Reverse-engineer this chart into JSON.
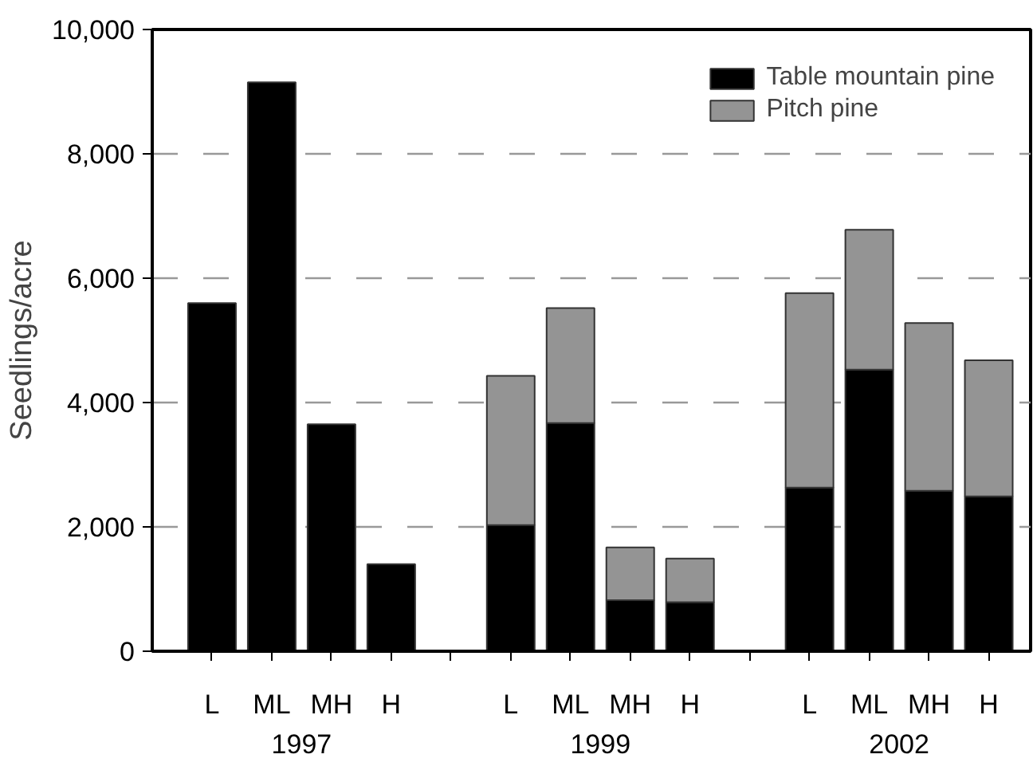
{
  "chart_data": {
    "type": "bar",
    "stacked": true,
    "ylabel": "Seedlings/acre",
    "categories": [
      "L",
      "ML",
      "MH",
      "H",
      null,
      "L",
      "ML",
      "MH",
      "H",
      null,
      "L",
      "ML",
      "MH",
      "H"
    ],
    "series": [
      {
        "name": "Table mountain pine",
        "color": "#000000",
        "values": [
          5600,
          9150,
          3650,
          1400,
          null,
          2030,
          3670,
          820,
          790,
          null,
          2630,
          4530,
          2580,
          2490
        ]
      },
      {
        "name": "Pitch pine",
        "color": "#949494",
        "values": [
          null,
          null,
          null,
          null,
          null,
          2400,
          1850,
          850,
          700,
          null,
          3130,
          2250,
          2700,
          2190
        ]
      }
    ],
    "annotations": [
      "1997",
      "1999",
      "2002"
    ],
    "ylim": [
      0,
      10000
    ],
    "yticks": [
      0,
      {
        "value": 2000,
        "label": "2,000"
      },
      {
        "value": 4000,
        "label": "4,000"
      },
      {
        "value": 6000,
        "label": "6,000"
      },
      {
        "value": 8000,
        "label": "8,000"
      },
      {
        "value": 10000,
        "label": "10,000"
      }
    ],
    "grid": "y",
    "legend": "top right"
  }
}
